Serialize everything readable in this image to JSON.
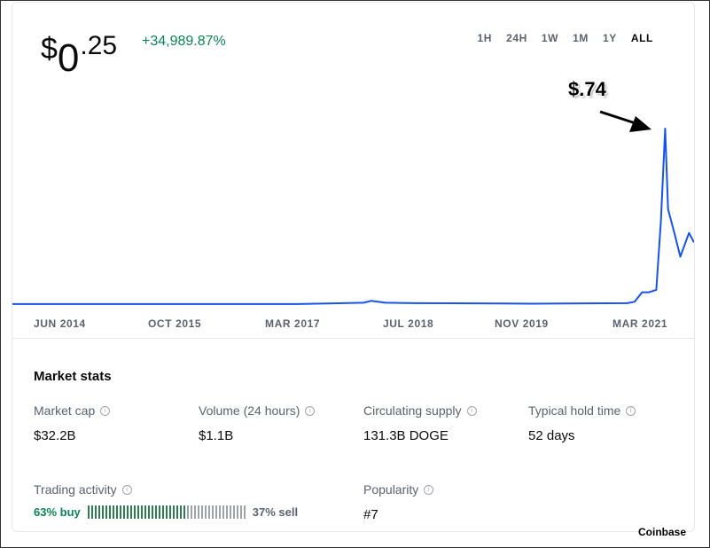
{
  "header": {
    "price_currency": "$",
    "price_whole": "0",
    "price_fraction": ".25",
    "change": "+34,989.87%"
  },
  "time_ranges": [
    {
      "label": "1H",
      "active": false
    },
    {
      "label": "24H",
      "active": false
    },
    {
      "label": "1W",
      "active": false
    },
    {
      "label": "1M",
      "active": false
    },
    {
      "label": "1Y",
      "active": false
    },
    {
      "label": "ALL",
      "active": true
    }
  ],
  "annotation": {
    "label": "$.74"
  },
  "colors": {
    "line": "#1652f0",
    "positive": "#098551",
    "muted": "#5b616e"
  },
  "chart_data": {
    "type": "line",
    "x_ticks": [
      "JUN 2014",
      "OCT 2015",
      "MAR 2017",
      "JUL 2018",
      "NOV 2019",
      "MAR 2021"
    ],
    "x": [
      "2013-12",
      "2014-06",
      "2015-10",
      "2017-03",
      "2017-12",
      "2018-01",
      "2018-03",
      "2018-07",
      "2019-07",
      "2019-11",
      "2020-12",
      "2021-01",
      "2021-02",
      "2021-03",
      "2021-04",
      "2021-04-20",
      "2021-05-08",
      "2021-05-20",
      "2021-06-15",
      "2021-07-10",
      "2021-08-15",
      "2021-09-05"
    ],
    "y": [
      0.0002,
      0.0003,
      0.0002,
      0.0003,
      0.006,
      0.014,
      0.006,
      0.004,
      0.003,
      0.002,
      0.004,
      0.01,
      0.05,
      0.05,
      0.06,
      0.35,
      0.74,
      0.4,
      0.3,
      0.2,
      0.3,
      0.26
    ],
    "grid": false
  },
  "market_stats": {
    "title": "Market stats",
    "items": [
      {
        "label": "Market cap",
        "value": "$32.2B"
      },
      {
        "label": "Volume (24 hours)",
        "value": "$1.1B"
      },
      {
        "label": "Circulating supply",
        "value": "131.3B DOGE"
      },
      {
        "label": "Typical hold time",
        "value": "52 days"
      }
    ],
    "trading_activity": {
      "label": "Trading activity",
      "buy": "63% buy",
      "sell": "37% sell",
      "buy_fraction": 0.63
    },
    "popularity": {
      "label": "Popularity",
      "value": "#7"
    }
  },
  "watermark": "Coinbase"
}
